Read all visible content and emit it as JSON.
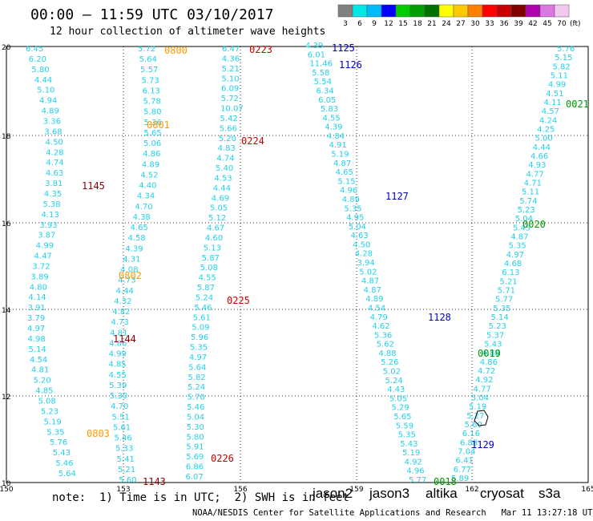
{
  "header": {
    "title": "00:00 – 11:59 UTC 03/10/2017",
    "subtitle": "12 hour collection of altimeter wave heights"
  },
  "colorbar": {
    "labels": [
      "3",
      "6",
      "9",
      "12",
      "15",
      "18",
      "21",
      "24",
      "27",
      "30",
      "33",
      "36",
      "39",
      "42",
      "45",
      "70"
    ],
    "unit": "(ft)",
    "colors": [
      "#808080",
      "#00e8e8",
      "#00bcff",
      "#0000ff",
      "#00cc00",
      "#00a000",
      "#007000",
      "#ffff00",
      "#ffc800",
      "#ff8000",
      "#ff0000",
      "#c80000",
      "#800000",
      "#b000b0",
      "#d878e0",
      "#f0c8f0"
    ]
  },
  "axes": {
    "x_ticks": [
      "150",
      "153",
      "156",
      "159",
      "162",
      "165"
    ],
    "y_ticks": [
      "20",
      "18",
      "16",
      "14",
      "12",
      "10"
    ]
  },
  "satellites": [
    {
      "name": "jason2",
      "color": "#0000cc"
    },
    {
      "name": "jason3",
      "color": "#009900"
    },
    {
      "name": "altika",
      "color": "#ff9900"
    },
    {
      "name": "cryosat",
      "color": "#cc0000"
    },
    {
      "name": "s3a",
      "color": "#880000"
    }
  ],
  "pass_labels": [
    {
      "text": "0800",
      "color": "#ff9900"
    },
    {
      "text": "0801",
      "color": "#ff9900"
    },
    {
      "text": "0802",
      "color": "#ff9900"
    },
    {
      "text": "0803",
      "color": "#ff9900"
    },
    {
      "text": "0223",
      "color": "#cc0000"
    },
    {
      "text": "0224",
      "color": "#cc0000"
    },
    {
      "text": "0225",
      "color": "#cc0000"
    },
    {
      "text": "0226",
      "color": "#cc0000"
    },
    {
      "text": "1145",
      "color": "#880000"
    },
    {
      "text": "1144",
      "color": "#880000"
    },
    {
      "text": "1143",
      "color": "#880000"
    },
    {
      "text": "1125",
      "color": "#0000cc"
    },
    {
      "text": "1126",
      "color": "#0000cc"
    },
    {
      "text": "1127",
      "color": "#0000cc"
    },
    {
      "text": "1128",
      "color": "#0000cc"
    },
    {
      "text": "1129",
      "color": "#0000cc"
    },
    {
      "text": "0021",
      "color": "#009900"
    },
    {
      "text": "0020",
      "color": "#009900"
    },
    {
      "text": "0019",
      "color": "#009900"
    },
    {
      "text": "0018",
      "color": "#009900"
    }
  ],
  "tracks": [
    {
      "name": "track-1",
      "values": [
        "6.45",
        "6.20",
        "5.80",
        "4.44",
        "5.10",
        "4.94",
        "4.89",
        "3.36",
        "3.68",
        "4.50",
        "4.28",
        "4.74",
        "4.63",
        "3.81",
        "4.35",
        "5.38",
        "4.13",
        "3.93",
        "3.87",
        "4.99",
        "4.47",
        "3.72",
        "3.89",
        "4.80",
        "4.14",
        "3.91",
        "3.79",
        "4.97",
        "4.98",
        "5.14",
        "4.54",
        "4.81",
        "5.20",
        "4.85",
        "5.08",
        "5.23",
        "5.19",
        "5.35",
        "5.76",
        "5.43",
        "5.46",
        "5.64"
      ]
    },
    {
      "name": "track-2",
      "values": [
        "5.72",
        "5.64",
        "5.57",
        "5.73",
        "6.13",
        "5.78",
        "5.80",
        "5.36",
        "5.65",
        "5.06",
        "4.86",
        "4.89",
        "4.52",
        "4.40",
        "4.34",
        "4.70",
        "4.38",
        "4.65",
        "4.58",
        "4.39",
        "4.31",
        "4.08",
        "4.73",
        "4.44",
        "4.32",
        "4.82",
        "4.73",
        "4.81",
        "4.86",
        "4.99",
        "4.85",
        "4.55",
        "5.39",
        "5.30",
        "4.70",
        "5.51",
        "5.61",
        "5.46",
        "5.33",
        "5.41",
        "5.21",
        "5.60"
      ]
    },
    {
      "name": "track-3",
      "values": [
        "6.47",
        "4.36",
        "5.21",
        "5.10",
        "6.09",
        "5.72",
        "10.07",
        "5.42",
        "5.66",
        "5.20",
        "4.83",
        "4.74",
        "5.40",
        "4.53",
        "4.44",
        "4.69",
        "5.05",
        "5.12",
        "4.67",
        "4.60",
        "5.13",
        "5.87",
        "5.08",
        "4.55",
        "5.87",
        "5.24",
        "5.46",
        "5.61",
        "5.09",
        "5.96",
        "5.35",
        "4.97",
        "5.64",
        "5.82",
        "5.24",
        "5.70",
        "5.46",
        "5.04",
        "5.30",
        "5.80",
        "5.91",
        "5.69",
        "6.86",
        "6.07"
      ]
    },
    {
      "name": "track-4",
      "values": [
        "4.39",
        "6.01",
        "11.46",
        "5.58",
        "5.54",
        "6.34",
        "6.05",
        "5.83",
        "4.55",
        "4.39",
        "4.84",
        "4.91",
        "5.19",
        "4.87",
        "4.65",
        "5.15",
        "4.96",
        "4.89",
        "5.35",
        "4.95",
        "5.04",
        "4.63",
        "4.50",
        "4.28",
        "3.94",
        "5.02",
        "4.87",
        "4.87",
        "4.89",
        "4.54",
        "4.79",
        "4.62",
        "5.36",
        "5.62",
        "4.88",
        "5.26",
        "5.02",
        "5.24",
        "4.43",
        "5.05",
        "5.29",
        "5.65",
        "5.59",
        "5.35",
        "5.43",
        "5.19",
        "4.92",
        "4.96",
        "5.77"
      ]
    },
    {
      "name": "track-5",
      "values": [
        "5.76",
        "5.15",
        "5.82",
        "5.11",
        "4.99",
        "4.51",
        "4.11",
        "4.57",
        "4.24",
        "4.25",
        "5.00",
        "4.44",
        "4.66",
        "4.93",
        "4.77",
        "4.71",
        "5.11",
        "5.74",
        "5.23",
        "5.04",
        "5.45",
        "4.87",
        "5.35",
        "4.97",
        "4.68",
        "6.13",
        "5.21",
        "5.71",
        "5.77",
        "5.35",
        "5.14",
        "5.23",
        "5.37",
        "5.43",
        "4.88",
        "4.86",
        "4.72",
        "4.92",
        "4.77",
        "5.04",
        "5.19",
        "5.27",
        "5.60",
        "6.16",
        "6.88",
        "7.04",
        "6.41",
        "6.77",
        "5.89"
      ]
    }
  ],
  "footer": {
    "note": "note:  1) Time is in UTC;  2) SWH is in feet",
    "credit": "NOAA/NESDIS Center for Satellite Applications and Research   Mar 11 13:27:18 UTC 2017"
  }
}
